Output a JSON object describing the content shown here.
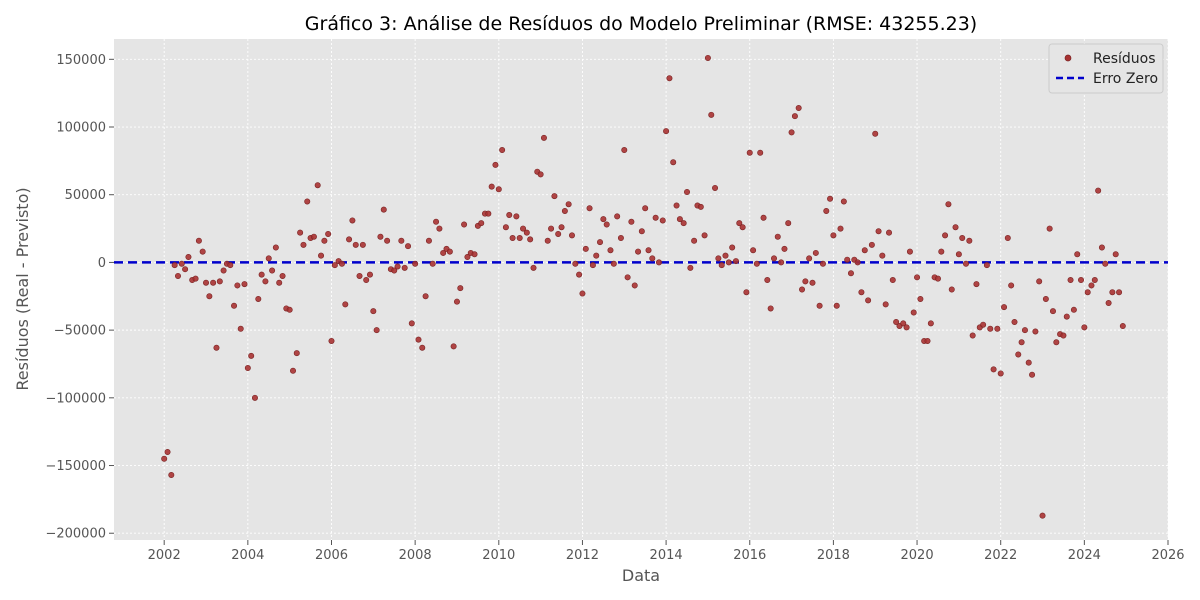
{
  "chart_data": {
    "type": "scatter",
    "title": "Gráfico 3: Análise de Resíduos do Modelo Preliminar (RMSE: 43255.23)",
    "xlabel": "Data",
    "ylabel": "Resíduos (Real - Previsto)",
    "xlim": [
      2000.8,
      2026.0
    ],
    "ylim": [
      -205000,
      165000
    ],
    "x_ticks": [
      2002,
      2004,
      2006,
      2008,
      2010,
      2012,
      2014,
      2016,
      2018,
      2020,
      2022,
      2024,
      2026
    ],
    "x_tick_labels": [
      "2002",
      "2004",
      "2006",
      "2008",
      "2010",
      "2012",
      "2014",
      "2016",
      "2018",
      "2020",
      "2022",
      "2024",
      "2026"
    ],
    "y_ticks": [
      -200000,
      -150000,
      -100000,
      -50000,
      0,
      50000,
      100000,
      150000
    ],
    "y_tick_labels": [
      "−200000",
      "−150000",
      "−100000",
      "−50000",
      "0",
      "50000",
      "100000",
      "150000"
    ],
    "grid": true,
    "legend_position": "top-right",
    "background_color": "#e5e5e5",
    "series": [
      {
        "name": "Resíduos",
        "kind": "scatter",
        "color": "#a83232",
        "points": [
          [
            2002.0,
            -145000
          ],
          [
            2002.08,
            -140000
          ],
          [
            2002.17,
            -157000
          ],
          [
            2002.25,
            -2000
          ],
          [
            2002.33,
            -10000
          ],
          [
            2002.42,
            -1000
          ],
          [
            2002.5,
            -5000
          ],
          [
            2002.58,
            4000
          ],
          [
            2002.67,
            -13000
          ],
          [
            2002.75,
            -12000
          ],
          [
            2002.83,
            16000
          ],
          [
            2002.92,
            8000
          ],
          [
            2003.0,
            -15000
          ],
          [
            2003.08,
            -25000
          ],
          [
            2003.17,
            -15000
          ],
          [
            2003.25,
            -63000
          ],
          [
            2003.33,
            -14000
          ],
          [
            2003.42,
            -6000
          ],
          [
            2003.5,
            -1000
          ],
          [
            2003.58,
            -2000
          ],
          [
            2003.67,
            -32000
          ],
          [
            2003.75,
            -17000
          ],
          [
            2003.83,
            -49000
          ],
          [
            2003.92,
            -16000
          ],
          [
            2004.0,
            -78000
          ],
          [
            2004.08,
            -69000
          ],
          [
            2004.17,
            -100000
          ],
          [
            2004.25,
            -27000
          ],
          [
            2004.33,
            -9000
          ],
          [
            2004.42,
            -14000
          ],
          [
            2004.5,
            3000
          ],
          [
            2004.58,
            -6000
          ],
          [
            2004.67,
            11000
          ],
          [
            2004.75,
            -15000
          ],
          [
            2004.83,
            -10000
          ],
          [
            2004.92,
            -34000
          ],
          [
            2005.0,
            -35000
          ],
          [
            2005.08,
            -80000
          ],
          [
            2005.17,
            -67000
          ],
          [
            2005.25,
            22000
          ],
          [
            2005.33,
            13000
          ],
          [
            2005.42,
            45000
          ],
          [
            2005.5,
            18000
          ],
          [
            2005.58,
            19000
          ],
          [
            2005.67,
            57000
          ],
          [
            2005.75,
            5000
          ],
          [
            2005.83,
            16000
          ],
          [
            2005.92,
            21000
          ],
          [
            2006.0,
            -58000
          ],
          [
            2006.08,
            -2000
          ],
          [
            2006.17,
            1000
          ],
          [
            2006.25,
            -1000
          ],
          [
            2006.33,
            -31000
          ],
          [
            2006.42,
            17000
          ],
          [
            2006.5,
            31000
          ],
          [
            2006.58,
            13000
          ],
          [
            2006.67,
            -10000
          ],
          [
            2006.75,
            13000
          ],
          [
            2006.83,
            -13000
          ],
          [
            2006.92,
            -9000
          ],
          [
            2007.0,
            -36000
          ],
          [
            2007.08,
            -50000
          ],
          [
            2007.17,
            19000
          ],
          [
            2007.25,
            39000
          ],
          [
            2007.33,
            16000
          ],
          [
            2007.42,
            -5000
          ],
          [
            2007.5,
            -6000
          ],
          [
            2007.58,
            -3000
          ],
          [
            2007.67,
            16000
          ],
          [
            2007.75,
            -4000
          ],
          [
            2007.83,
            12000
          ],
          [
            2007.92,
            -45000
          ],
          [
            2008.0,
            -1000
          ],
          [
            2008.08,
            -57000
          ],
          [
            2008.17,
            -63000
          ],
          [
            2008.25,
            -25000
          ],
          [
            2008.33,
            16000
          ],
          [
            2008.42,
            -1000
          ],
          [
            2008.5,
            30000
          ],
          [
            2008.58,
            25000
          ],
          [
            2008.67,
            7000
          ],
          [
            2008.75,
            10000
          ],
          [
            2008.83,
            8000
          ],
          [
            2008.92,
            -62000
          ],
          [
            2009.0,
            -29000
          ],
          [
            2009.08,
            -19000
          ],
          [
            2009.17,
            28000
          ],
          [
            2009.25,
            4000
          ],
          [
            2009.33,
            7000
          ],
          [
            2009.42,
            6000
          ],
          [
            2009.5,
            27000
          ],
          [
            2009.58,
            29000
          ],
          [
            2009.67,
            36000
          ],
          [
            2009.75,
            36000
          ],
          [
            2009.83,
            56000
          ],
          [
            2009.92,
            72000
          ],
          [
            2010.0,
            54000
          ],
          [
            2010.08,
            83000
          ],
          [
            2010.17,
            26000
          ],
          [
            2010.25,
            35000
          ],
          [
            2010.33,
            18000
          ],
          [
            2010.42,
            34000
          ],
          [
            2010.5,
            18000
          ],
          [
            2010.58,
            25000
          ],
          [
            2010.67,
            22000
          ],
          [
            2010.75,
            17000
          ],
          [
            2010.83,
            -4000
          ],
          [
            2010.92,
            67000
          ],
          [
            2011.0,
            65000
          ],
          [
            2011.08,
            92000
          ],
          [
            2011.17,
            16000
          ],
          [
            2011.25,
            25000
          ],
          [
            2011.33,
            49000
          ],
          [
            2011.42,
            21000
          ],
          [
            2011.5,
            26000
          ],
          [
            2011.58,
            38000
          ],
          [
            2011.67,
            43000
          ],
          [
            2011.75,
            20000
          ],
          [
            2011.83,
            -1000
          ],
          [
            2011.92,
            -9000
          ],
          [
            2012.0,
            -23000
          ],
          [
            2012.08,
            10000
          ],
          [
            2012.17,
            40000
          ],
          [
            2012.25,
            -2000
          ],
          [
            2012.33,
            5000
          ],
          [
            2012.42,
            15000
          ],
          [
            2012.5,
            32000
          ],
          [
            2012.58,
            28000
          ],
          [
            2012.67,
            9000
          ],
          [
            2012.75,
            -1000
          ],
          [
            2012.83,
            34000
          ],
          [
            2012.92,
            18000
          ],
          [
            2013.0,
            83000
          ],
          [
            2013.08,
            -11000
          ],
          [
            2013.17,
            30000
          ],
          [
            2013.25,
            -17000
          ],
          [
            2013.33,
            8000
          ],
          [
            2013.42,
            23000
          ],
          [
            2013.5,
            40000
          ],
          [
            2013.58,
            9000
          ],
          [
            2013.67,
            3000
          ],
          [
            2013.75,
            33000
          ],
          [
            2013.83,
            0
          ],
          [
            2013.92,
            31000
          ],
          [
            2014.0,
            97000
          ],
          [
            2014.08,
            136000
          ],
          [
            2014.17,
            74000
          ],
          [
            2014.25,
            42000
          ],
          [
            2014.33,
            32000
          ],
          [
            2014.42,
            29000
          ],
          [
            2014.5,
            52000
          ],
          [
            2014.58,
            -4000
          ],
          [
            2014.67,
            16000
          ],
          [
            2014.75,
            42000
          ],
          [
            2014.83,
            41000
          ],
          [
            2014.92,
            20000
          ],
          [
            2015.0,
            151000
          ],
          [
            2015.08,
            109000
          ],
          [
            2015.17,
            55000
          ],
          [
            2015.25,
            3000
          ],
          [
            2015.33,
            -2000
          ],
          [
            2015.42,
            5000
          ],
          [
            2015.5,
            0
          ],
          [
            2015.58,
            11000
          ],
          [
            2015.67,
            1000
          ],
          [
            2015.75,
            29000
          ],
          [
            2015.83,
            26000
          ],
          [
            2015.92,
            -22000
          ],
          [
            2016.0,
            81000
          ],
          [
            2016.08,
            9000
          ],
          [
            2016.17,
            -1000
          ],
          [
            2016.25,
            81000
          ],
          [
            2016.33,
            33000
          ],
          [
            2016.42,
            -13000
          ],
          [
            2016.5,
            -34000
          ],
          [
            2016.58,
            3000
          ],
          [
            2016.67,
            19000
          ],
          [
            2016.75,
            0
          ],
          [
            2016.83,
            10000
          ],
          [
            2016.92,
            29000
          ],
          [
            2017.0,
            96000
          ],
          [
            2017.08,
            108000
          ],
          [
            2017.17,
            114000
          ],
          [
            2017.25,
            -20000
          ],
          [
            2017.33,
            -14000
          ],
          [
            2017.42,
            3000
          ],
          [
            2017.5,
            -15000
          ],
          [
            2017.58,
            7000
          ],
          [
            2017.67,
            -32000
          ],
          [
            2017.75,
            -1000
          ],
          [
            2017.83,
            38000
          ],
          [
            2017.92,
            47000
          ],
          [
            2018.0,
            20000
          ],
          [
            2018.08,
            -32000
          ],
          [
            2018.17,
            25000
          ],
          [
            2018.25,
            45000
          ],
          [
            2018.33,
            2000
          ],
          [
            2018.42,
            -8000
          ],
          [
            2018.5,
            2000
          ],
          [
            2018.58,
            0
          ],
          [
            2018.67,
            -22000
          ],
          [
            2018.75,
            9000
          ],
          [
            2018.83,
            -28000
          ],
          [
            2018.92,
            13000
          ],
          [
            2019.0,
            95000
          ],
          [
            2019.08,
            23000
          ],
          [
            2019.17,
            5000
          ],
          [
            2019.25,
            -31000
          ],
          [
            2019.33,
            22000
          ],
          [
            2019.42,
            -13000
          ],
          [
            2019.5,
            -44000
          ],
          [
            2019.58,
            -47000
          ],
          [
            2019.67,
            -45000
          ],
          [
            2019.75,
            -48000
          ],
          [
            2019.83,
            8000
          ],
          [
            2019.92,
            -37000
          ],
          [
            2020.0,
            -11000
          ],
          [
            2020.08,
            -27000
          ],
          [
            2020.17,
            -58000
          ],
          [
            2020.25,
            -58000
          ],
          [
            2020.33,
            -45000
          ],
          [
            2020.42,
            -11000
          ],
          [
            2020.5,
            -12000
          ],
          [
            2020.58,
            8000
          ],
          [
            2020.67,
            20000
          ],
          [
            2020.75,
            43000
          ],
          [
            2020.83,
            -20000
          ],
          [
            2020.92,
            26000
          ],
          [
            2021.0,
            6000
          ],
          [
            2021.08,
            18000
          ],
          [
            2021.17,
            -1000
          ],
          [
            2021.25,
            16000
          ],
          [
            2021.33,
            -54000
          ],
          [
            2021.42,
            -16000
          ],
          [
            2021.5,
            -48000
          ],
          [
            2021.58,
            -46000
          ],
          [
            2021.67,
            -2000
          ],
          [
            2021.75,
            -49000
          ],
          [
            2021.83,
            -79000
          ],
          [
            2021.92,
            -49000
          ],
          [
            2022.0,
            -82000
          ],
          [
            2022.08,
            -33000
          ],
          [
            2022.17,
            18000
          ],
          [
            2022.25,
            -17000
          ],
          [
            2022.33,
            -44000
          ],
          [
            2022.42,
            -68000
          ],
          [
            2022.5,
            -59000
          ],
          [
            2022.58,
            -50000
          ],
          [
            2022.67,
            -74000
          ],
          [
            2022.75,
            -83000
          ],
          [
            2022.83,
            -51000
          ],
          [
            2022.92,
            -14000
          ],
          [
            2023.0,
            -187000
          ],
          [
            2023.08,
            -27000
          ],
          [
            2023.17,
            25000
          ],
          [
            2023.25,
            -36000
          ],
          [
            2023.33,
            -59000
          ],
          [
            2023.42,
            -53000
          ],
          [
            2023.5,
            -54000
          ],
          [
            2023.58,
            -40000
          ],
          [
            2023.67,
            -13000
          ],
          [
            2023.75,
            -35000
          ],
          [
            2023.83,
            6000
          ],
          [
            2023.92,
            -13000
          ],
          [
            2024.0,
            -48000
          ],
          [
            2024.08,
            -22000
          ],
          [
            2024.17,
            -17000
          ],
          [
            2024.25,
            -13000
          ],
          [
            2024.33,
            53000
          ],
          [
            2024.42,
            11000
          ],
          [
            2024.5,
            -1000
          ],
          [
            2024.58,
            -30000
          ],
          [
            2024.67,
            -22000
          ],
          [
            2024.75,
            6000
          ],
          [
            2024.83,
            -22000
          ],
          [
            2024.92,
            -47000
          ]
        ]
      },
      {
        "name": "Erro Zero",
        "kind": "hline",
        "y": 0,
        "color": "#0000cc",
        "style": "dashed"
      }
    ]
  }
}
